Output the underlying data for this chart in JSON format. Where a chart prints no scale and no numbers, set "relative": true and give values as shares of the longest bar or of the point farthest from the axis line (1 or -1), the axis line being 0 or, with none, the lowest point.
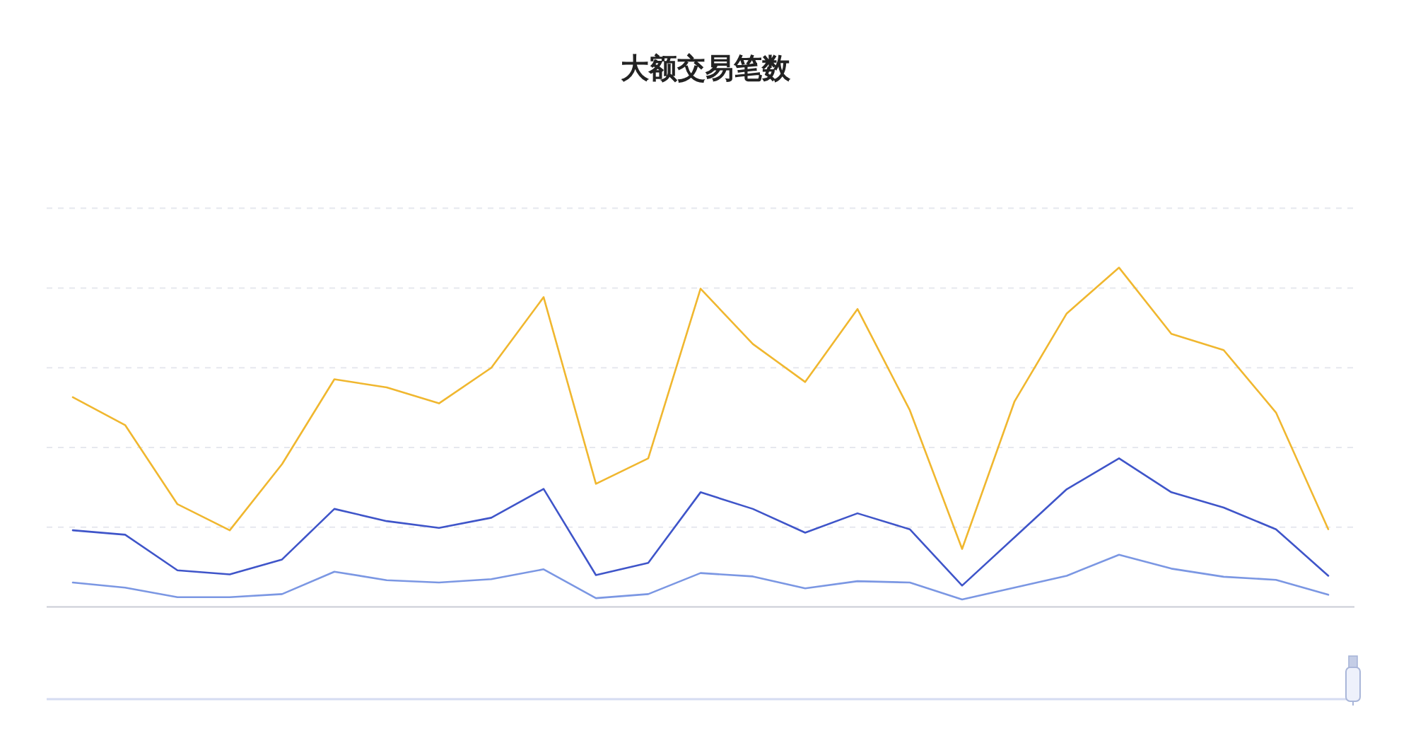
{
  "chart_data": {
    "type": "line",
    "title": "大额交易笔数",
    "relative": true,
    "grid": "y",
    "categories": [
      null,
      null,
      null,
      null,
      null,
      null,
      null,
      null,
      null,
      null,
      null,
      null,
      null,
      null,
      null,
      null,
      null,
      null,
      null,
      null,
      null,
      null,
      null,
      null,
      null
    ],
    "series": [
      {
        "color": "#f0b72f",
        "values": [
          0.618,
          0.536,
          0.303,
          0.226,
          0.421,
          0.671,
          0.647,
          0.6,
          0.705,
          0.913,
          0.363,
          0.438,
          0.938,
          0.775,
          0.663,
          0.878,
          0.58,
          0.171,
          0.605,
          0.865,
          1.0,
          0.805,
          0.757,
          0.573,
          0.229
        ]
      },
      {
        "color": "#3f55c9",
        "values": [
          0.226,
          0.213,
          0.108,
          0.096,
          0.14,
          0.289,
          0.253,
          0.233,
          0.263,
          0.348,
          0.094,
          0.13,
          0.338,
          0.289,
          0.219,
          0.276,
          0.229,
          0.063,
          0.205,
          0.347,
          0.438,
          0.338,
          0.293,
          0.229,
          0.092
        ]
      },
      {
        "color": "#7b97e3",
        "values": [
          0.072,
          0.057,
          0.029,
          0.029,
          0.038,
          0.104,
          0.079,
          0.072,
          0.082,
          0.111,
          0.026,
          0.038,
          0.1,
          0.09,
          0.055,
          0.076,
          0.072,
          0.022,
          0.057,
          0.092,
          0.154,
          0.113,
          0.089,
          0.08,
          0.036
        ]
      }
    ]
  }
}
